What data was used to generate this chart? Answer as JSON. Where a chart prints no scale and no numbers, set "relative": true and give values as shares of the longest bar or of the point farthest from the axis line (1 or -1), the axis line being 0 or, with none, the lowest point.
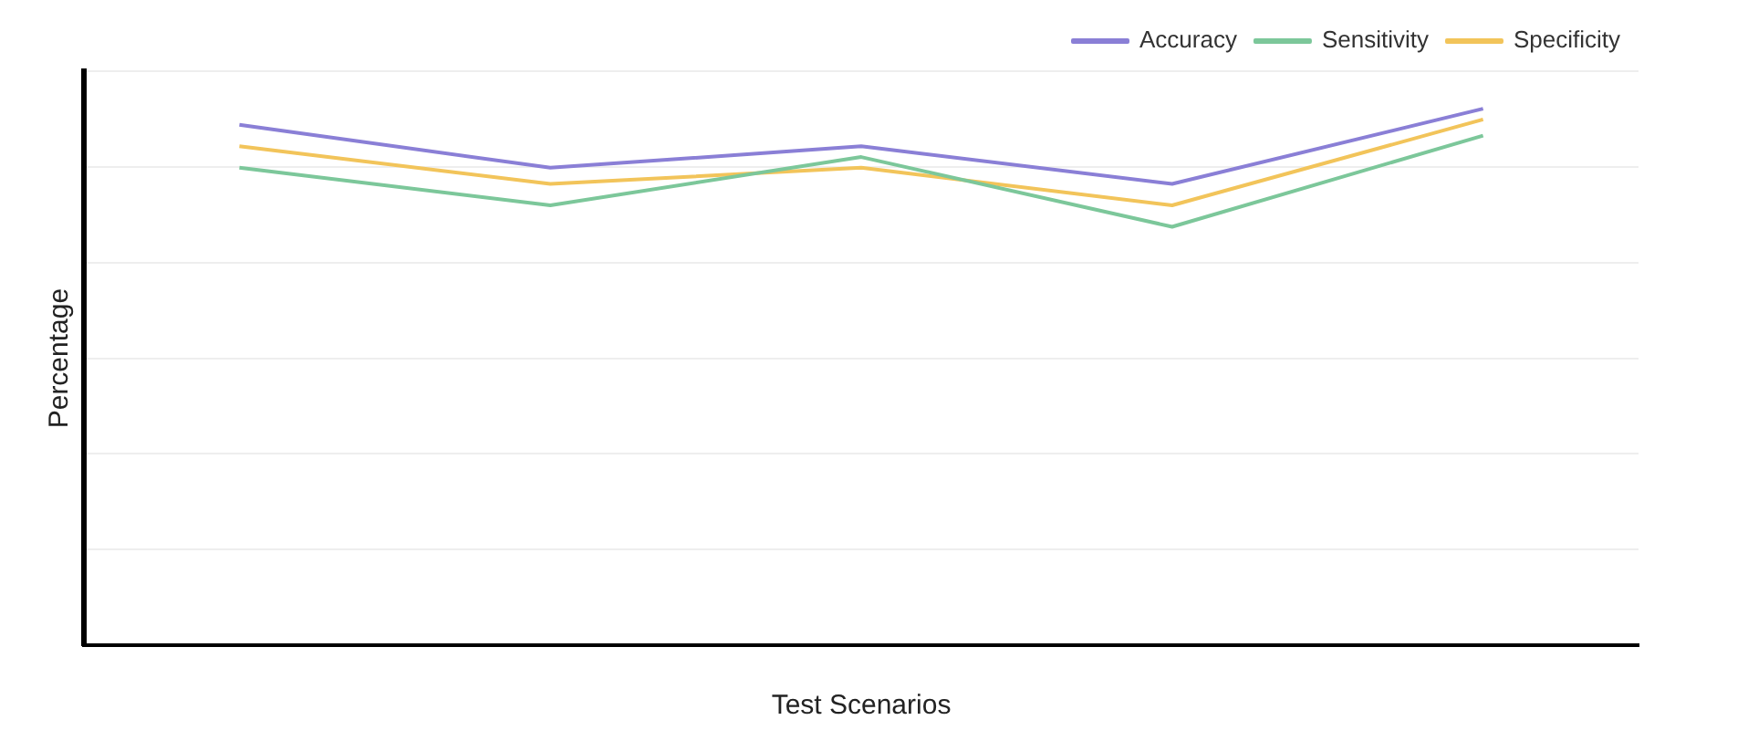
{
  "chart_data": {
    "type": "line",
    "xlabel": "Test Scenarios",
    "ylabel": "Percentage",
    "relative": true,
    "categories": [
      null,
      null,
      null,
      null,
      null
    ],
    "series": [
      {
        "name": "Accuracy",
        "color": "#8a7fd6",
        "values": [
          0.97,
          0.89,
          0.93,
          0.86,
          1
        ]
      },
      {
        "name": "Sensitivity",
        "color": "#7cc79a",
        "values": [
          0.89,
          0.82,
          0.91,
          0.78,
          0.95
        ]
      },
      {
        "name": "Specificity",
        "color": "#f2c45a",
        "values": [
          0.93,
          0.86,
          0.89,
          0.82,
          0.98
        ]
      }
    ],
    "grid": "y",
    "legend": "top right",
    "marker": "none",
    "line_style": "solid"
  }
}
